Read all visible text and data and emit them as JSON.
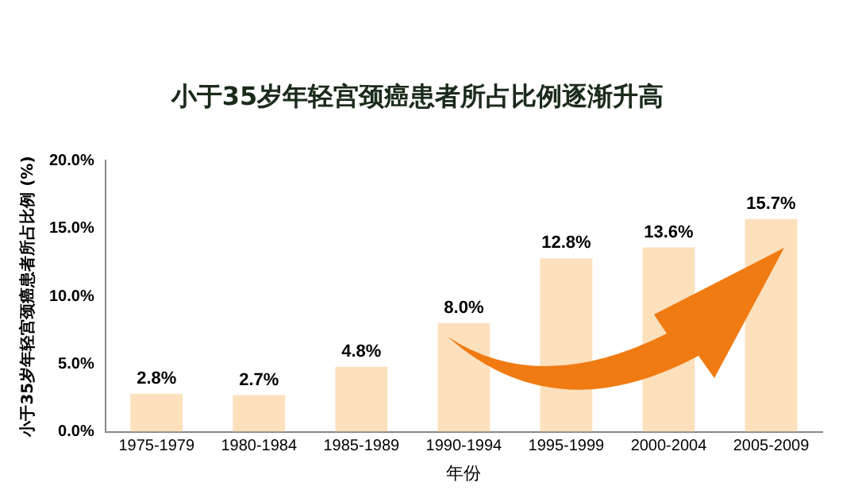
{
  "chart_data": {
    "type": "bar",
    "title": "小于35岁年轻宫颈癌患者所占比例逐渐升高",
    "xlabel": "年份",
    "ylabel": "小于35岁年轻宫颈癌患者所占比例 (%)",
    "categories": [
      "1975-1979",
      "1980-1984",
      "1985-1989",
      "1990-1994",
      "1995-1999",
      "2000-2004",
      "2005-2009"
    ],
    "values": [
      2.8,
      2.7,
      4.8,
      8.0,
      12.8,
      13.6,
      15.7
    ],
    "value_labels": [
      "2.8%",
      "2.7%",
      "4.8%",
      "8.0%",
      "12.8%",
      "13.6%",
      "15.7%"
    ],
    "color": "#fde0bc",
    "ylim": [
      0,
      20
    ],
    "yticks": [
      {
        "value": 0,
        "label": "0.0%"
      },
      {
        "value": 5,
        "label": "5.0%"
      },
      {
        "value": 10,
        "label": "10.0%"
      },
      {
        "value": 15,
        "label": "15.0%"
      },
      {
        "value": 20,
        "label": "20.0%"
      }
    ],
    "grid": false,
    "legend": false
  }
}
